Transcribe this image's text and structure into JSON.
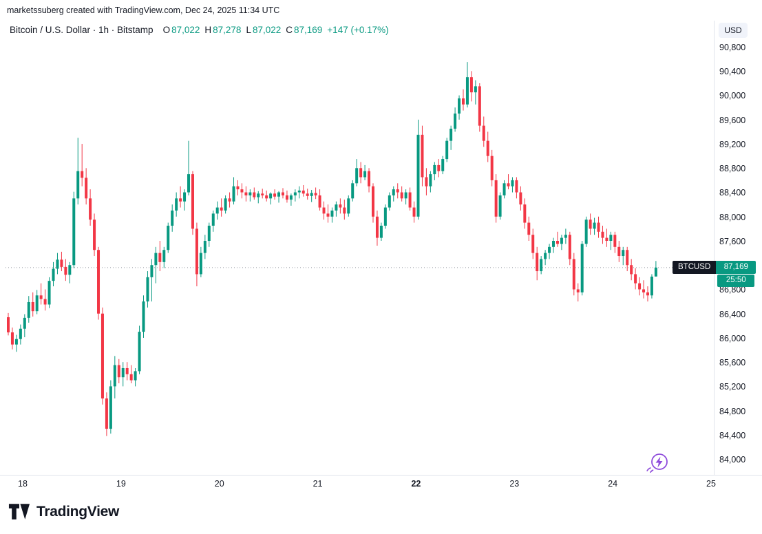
{
  "attribution": "marketssuberg created with TradingView.com, Dec 24, 2025 11:34 UTC",
  "header": {
    "title": "Bitcoin / U.S. Dollar · 1h · Bitstamp",
    "ohlc": {
      "o_label": "O",
      "o": "87,022",
      "h_label": "H",
      "h": "87,278",
      "l_label": "L",
      "l": "87,022",
      "c_label": "C",
      "c": "87,169",
      "change": "+147 (+0.17%)"
    }
  },
  "price_axis": {
    "currency": "USD",
    "ticks": [
      {
        "label": "90,800",
        "value": 90800
      },
      {
        "label": "90,400",
        "value": 90400
      },
      {
        "label": "90,000",
        "value": 90000
      },
      {
        "label": "89,600",
        "value": 89600
      },
      {
        "label": "89,200",
        "value": 89200
      },
      {
        "label": "88,800",
        "value": 88800
      },
      {
        "label": "88,400",
        "value": 88400
      },
      {
        "label": "88,000",
        "value": 88000
      },
      {
        "label": "87,600",
        "value": 87600
      },
      {
        "label": "87,200",
        "value": 87200
      },
      {
        "label": "86,800",
        "value": 86800
      },
      {
        "label": "86,400",
        "value": 86400
      },
      {
        "label": "86,000",
        "value": 86000
      },
      {
        "label": "85,600",
        "value": 85600
      },
      {
        "label": "85,200",
        "value": 85200
      },
      {
        "label": "84,800",
        "value": 84800
      },
      {
        "label": "84,400",
        "value": 84400
      },
      {
        "label": "84,000",
        "value": 84000
      }
    ]
  },
  "time_axis": {
    "labels": [
      {
        "text": "18",
        "bold": false
      },
      {
        "text": "19",
        "bold": false
      },
      {
        "text": "20",
        "bold": false
      },
      {
        "text": "21",
        "bold": false
      },
      {
        "text": "22",
        "bold": true
      },
      {
        "text": "23",
        "bold": false
      },
      {
        "text": "24",
        "bold": false
      },
      {
        "text": "25",
        "bold": false
      }
    ]
  },
  "price_badge": {
    "symbol": "BTCUSD",
    "price": "87,169",
    "countdown": "25:50"
  },
  "colors": {
    "up": "#089981",
    "down": "#F23645",
    "badge_symbol_bg": "#131722",
    "text": "#131722",
    "axis_line": "#E0E3EB",
    "price_line": "#9598A1",
    "purple": "#8E4BDB"
  },
  "logo": {
    "brand": "TradingView"
  },
  "chart_data": {
    "type": "candlestick",
    "title": "Bitcoin / U.S. Dollar",
    "symbol": "BTCUSD",
    "interval": "1h",
    "exchange": "Bitstamp",
    "current_candle": {
      "open": 87022,
      "high": 87278,
      "low": 87022,
      "close": 87169,
      "change": 147,
      "change_pct": 0.17
    },
    "last_price": 87169,
    "y_range": [
      84000,
      90800
    ],
    "x_labels": [
      "18",
      "19",
      "20",
      "21",
      "22",
      "23",
      "24",
      "25"
    ],
    "candles": [
      [
        86350,
        86420,
        86050,
        86100
      ],
      [
        86100,
        86180,
        85820,
        85900
      ],
      [
        85900,
        86060,
        85780,
        85990
      ],
      [
        85990,
        86230,
        85900,
        86160
      ],
      [
        86160,
        86400,
        86020,
        86340
      ],
      [
        86340,
        86700,
        86260,
        86600
      ],
      [
        86600,
        86760,
        86360,
        86450
      ],
      [
        86450,
        86800,
        86400,
        86710
      ],
      [
        86710,
        86910,
        86560,
        86650
      ],
      [
        86650,
        86810,
        86460,
        86560
      ],
      [
        86560,
        87010,
        86500,
        86950
      ],
      [
        86950,
        87260,
        86860,
        87150
      ],
      [
        87150,
        87410,
        87060,
        87300
      ],
      [
        87300,
        87430,
        87110,
        87180
      ],
      [
        87180,
        87310,
        86950,
        87050
      ],
      [
        87050,
        87260,
        86910,
        87210
      ],
      [
        87210,
        88420,
        87160,
        88310
      ],
      [
        88310,
        89310,
        88210,
        88760
      ],
      [
        88760,
        89210,
        88510,
        88650
      ],
      [
        88650,
        88810,
        88210,
        88310
      ],
      [
        88310,
        88460,
        87860,
        87960
      ],
      [
        87960,
        88060,
        87360,
        87460
      ],
      [
        87460,
        87510,
        86310,
        86410
      ],
      [
        86410,
        86510,
        84910,
        85010
      ],
      [
        85010,
        85110,
        84390,
        84510
      ],
      [
        84510,
        85310,
        84430,
        85210
      ],
      [
        85210,
        85710,
        85010,
        85560
      ],
      [
        85560,
        85660,
        85260,
        85360
      ],
      [
        85360,
        85610,
        85210,
        85510
      ],
      [
        85510,
        85610,
        85310,
        85410
      ],
      [
        85410,
        85560,
        85260,
        85310
      ],
      [
        85310,
        85510,
        85210,
        85460
      ],
      [
        85460,
        86210,
        85410,
        86110
      ],
      [
        86110,
        86710,
        86010,
        86610
      ],
      [
        86610,
        87110,
        86510,
        87010
      ],
      [
        87010,
        87310,
        86610,
        87210
      ],
      [
        87210,
        87510,
        86910,
        87410
      ],
      [
        87410,
        87610,
        87110,
        87260
      ],
      [
        87260,
        87510,
        87160,
        87460
      ],
      [
        87460,
        87910,
        87410,
        87860
      ],
      [
        87860,
        88210,
        87760,
        88110
      ],
      [
        88110,
        88410,
        88010,
        88310
      ],
      [
        88310,
        88510,
        88160,
        88260
      ],
      [
        88260,
        88460,
        88110,
        88410
      ],
      [
        88410,
        89260,
        88360,
        88710
      ],
      [
        88710,
        88760,
        87710,
        87810
      ],
      [
        87810,
        87910,
        86860,
        87060
      ],
      [
        87060,
        87510,
        87010,
        87410
      ],
      [
        87410,
        87710,
        87310,
        87610
      ],
      [
        87610,
        87910,
        87510,
        87860
      ],
      [
        87860,
        88110,
        87760,
        88060
      ],
      [
        88060,
        88260,
        87960,
        88160
      ],
      [
        88160,
        88310,
        88010,
        88110
      ],
      [
        88110,
        88360,
        88060,
        88310
      ],
      [
        88310,
        88410,
        88160,
        88260
      ],
      [
        88260,
        88660,
        88210,
        88510
      ],
      [
        88510,
        88610,
        88360,
        88460
      ],
      [
        88460,
        88560,
        88310,
        88410
      ],
      [
        88410,
        88510,
        88260,
        88360
      ],
      [
        88360,
        88460,
        88260,
        88410
      ],
      [
        88410,
        88490,
        88290,
        88330
      ],
      [
        88330,
        88430,
        88230,
        88390
      ],
      [
        88390,
        88470,
        88310,
        88360
      ],
      [
        88360,
        88440,
        88260,
        88310
      ],
      [
        88310,
        88410,
        88210,
        88390
      ],
      [
        88390,
        88460,
        88290,
        88340
      ],
      [
        88340,
        88430,
        88240,
        88410
      ],
      [
        88410,
        88480,
        88310,
        88360
      ],
      [
        88360,
        88440,
        88240,
        88290
      ],
      [
        88290,
        88390,
        88190,
        88360
      ],
      [
        88360,
        88460,
        88260,
        88410
      ],
      [
        88410,
        88510,
        88310,
        88440
      ],
      [
        88440,
        88530,
        88340,
        88390
      ],
      [
        88390,
        88470,
        88290,
        88350
      ],
      [
        88350,
        88450,
        88250,
        88400
      ],
      [
        88400,
        88490,
        88300,
        88360
      ],
      [
        88360,
        88460,
        88110,
        88160
      ],
      [
        88160,
        88260,
        87960,
        88060
      ],
      [
        88060,
        88210,
        87910,
        88010
      ],
      [
        88010,
        88160,
        87910,
        88110
      ],
      [
        88110,
        88260,
        88010,
        88210
      ],
      [
        88210,
        88310,
        88060,
        88160
      ],
      [
        88160,
        88290,
        87960,
        88060
      ],
      [
        88060,
        88360,
        88010,
        88310
      ],
      [
        88310,
        88610,
        88260,
        88560
      ],
      [
        88560,
        88960,
        88510,
        88810
      ],
      [
        88810,
        88910,
        88560,
        88660
      ],
      [
        88660,
        88860,
        88610,
        88760
      ],
      [
        88760,
        88810,
        88410,
        88510
      ],
      [
        88510,
        88560,
        87910,
        88010
      ],
      [
        88010,
        88110,
        87530,
        87660
      ],
      [
        87660,
        87910,
        87610,
        87860
      ],
      [
        87860,
        88210,
        87810,
        88160
      ],
      [
        88160,
        88410,
        88110,
        88360
      ],
      [
        88360,
        88510,
        88260,
        88460
      ],
      [
        88460,
        88560,
        88310,
        88410
      ],
      [
        88410,
        88510,
        88260,
        88310
      ],
      [
        88310,
        88460,
        88210,
        88410
      ],
      [
        88410,
        88490,
        88110,
        88160
      ],
      [
        88160,
        88260,
        87910,
        88010
      ],
      [
        88010,
        89610,
        87960,
        89360
      ],
      [
        89360,
        89510,
        88510,
        88660
      ],
      [
        88660,
        88810,
        88360,
        88510
      ],
      [
        88510,
        88760,
        88410,
        88710
      ],
      [
        88710,
        88910,
        88610,
        88860
      ],
      [
        88860,
        88960,
        88660,
        88760
      ],
      [
        88760,
        89010,
        88710,
        88960
      ],
      [
        88960,
        89310,
        88910,
        89260
      ],
      [
        89260,
        89510,
        89110,
        89460
      ],
      [
        89460,
        89810,
        89410,
        89710
      ],
      [
        89710,
        90010,
        89610,
        89960
      ],
      [
        89960,
        90110,
        89760,
        89860
      ],
      [
        89860,
        90560,
        89810,
        90310
      ],
      [
        90310,
        90410,
        89910,
        90060
      ],
      [
        90060,
        90260,
        89860,
        90160
      ],
      [
        90160,
        90210,
        89410,
        89510
      ],
      [
        89510,
        89660,
        89160,
        89260
      ],
      [
        89260,
        89410,
        88910,
        89010
      ],
      [
        89010,
        89110,
        88510,
        88610
      ],
      [
        88610,
        88710,
        87910,
        88010
      ],
      [
        88010,
        88410,
        87960,
        88360
      ],
      [
        88360,
        88610,
        88310,
        88560
      ],
      [
        88560,
        88710,
        88460,
        88510
      ],
      [
        88510,
        88660,
        88410,
        88610
      ],
      [
        88610,
        88660,
        88310,
        88410
      ],
      [
        88410,
        88510,
        88110,
        88210
      ],
      [
        88210,
        88310,
        87810,
        87910
      ],
      [
        87910,
        88010,
        87610,
        87710
      ],
      [
        87710,
        87810,
        87310,
        87410
      ],
      [
        87410,
        87510,
        86960,
        87110
      ],
      [
        87110,
        87360,
        87060,
        87310
      ],
      [
        87310,
        87460,
        87210,
        87410
      ],
      [
        87410,
        87560,
        87310,
        87510
      ],
      [
        87510,
        87660,
        87410,
        87610
      ],
      [
        87610,
        87760,
        87510,
        87560
      ],
      [
        87560,
        87710,
        87460,
        87660
      ],
      [
        87660,
        87810,
        87560,
        87710
      ],
      [
        87710,
        87760,
        87210,
        87310
      ],
      [
        87310,
        87410,
        86710,
        86810
      ],
      [
        86810,
        86910,
        86610,
        86760
      ],
      [
        86760,
        87610,
        86710,
        87560
      ],
      [
        87560,
        88010,
        87510,
        87960
      ],
      [
        87960,
        88060,
        87710,
        87810
      ],
      [
        87810,
        87990,
        87710,
        87910
      ],
      [
        87910,
        88010,
        87660,
        87760
      ],
      [
        87760,
        87860,
        87560,
        87660
      ],
      [
        87660,
        87810,
        87510,
        87610
      ],
      [
        87610,
        87760,
        87460,
        87710
      ],
      [
        87710,
        87760,
        87410,
        87510
      ],
      [
        87510,
        87610,
        87260,
        87360
      ],
      [
        87360,
        87510,
        87210,
        87460
      ],
      [
        87460,
        87510,
        87110,
        87210
      ],
      [
        87210,
        87310,
        86960,
        87060
      ],
      [
        87060,
        87160,
        86810,
        86910
      ],
      [
        86910,
        87010,
        86710,
        86810
      ],
      [
        86810,
        86960,
        86660,
        86760
      ],
      [
        86760,
        86860,
        86610,
        86710
      ],
      [
        86710,
        87060,
        86660,
        87020
      ],
      [
        87022,
        87278,
        87022,
        87169
      ]
    ]
  }
}
